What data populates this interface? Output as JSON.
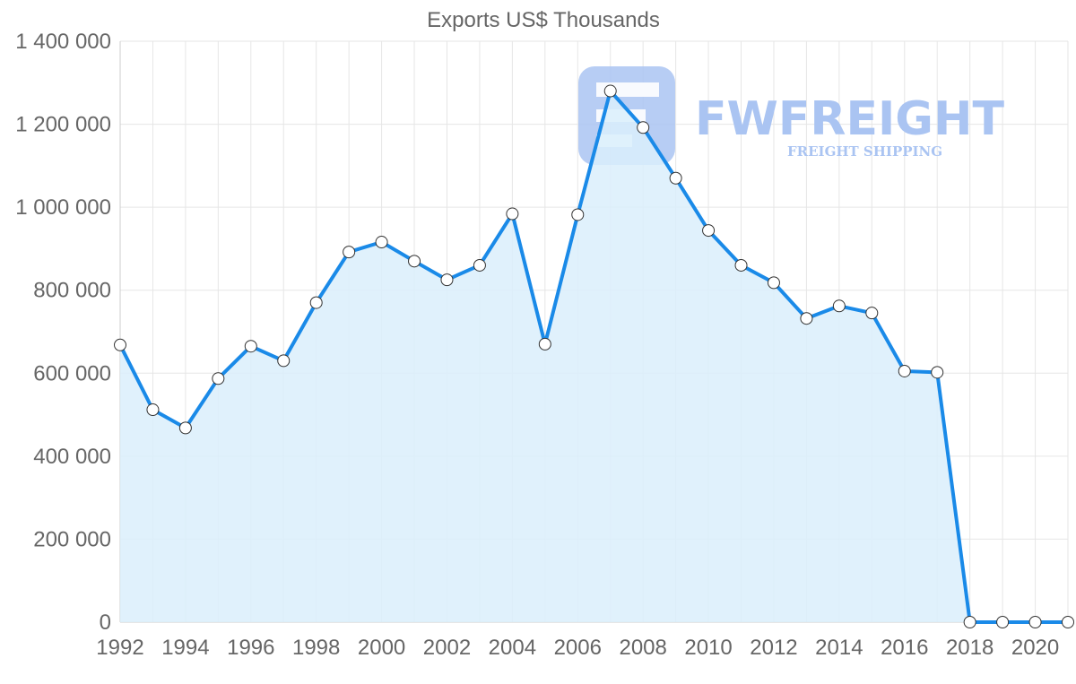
{
  "chart_data": {
    "type": "area",
    "title": "Exports US$ Thousands",
    "xlabel": "",
    "ylabel": "",
    "x": [
      1992,
      1993,
      1994,
      1995,
      1996,
      1997,
      1998,
      1999,
      2000,
      2001,
      2002,
      2003,
      2004,
      2005,
      2006,
      2007,
      2008,
      2009,
      2010,
      2011,
      2012,
      2013,
      2014,
      2015,
      2016,
      2017,
      2018,
      2019,
      2020,
      2021
    ],
    "series": [
      {
        "name": "Exports US$ Thousands",
        "color": "#1a8ae8",
        "fill": "#dbeefc",
        "values": [
          668000,
          512000,
          468000,
          587000,
          665000,
          630000,
          770000,
          892000,
          916000,
          870000,
          825000,
          860000,
          984000,
          670000,
          982000,
          1280000,
          1192000,
          1070000,
          944000,
          860000,
          818000,
          732000,
          762000,
          745000,
          605000,
          602000,
          0,
          0,
          0,
          0
        ]
      }
    ],
    "xlim": [
      1992,
      2021
    ],
    "ylim": [
      0,
      1400000
    ],
    "x_ticks": [
      "1992",
      "1994",
      "1996",
      "1998",
      "2000",
      "2002",
      "2004",
      "2006",
      "2008",
      "2010",
      "2012",
      "2014",
      "2016",
      "2018",
      "2020"
    ],
    "y_ticks": [
      "0",
      "200 000",
      "400 000",
      "600 000",
      "800 000",
      "1 000 000",
      "1 200 000",
      "1 400 000"
    ],
    "grid": true,
    "legend": "none"
  },
  "watermark": {
    "brand": "FWFREIGHT",
    "tagline": "FREIGHT SHIPPING",
    "color": "#aac4f2"
  }
}
